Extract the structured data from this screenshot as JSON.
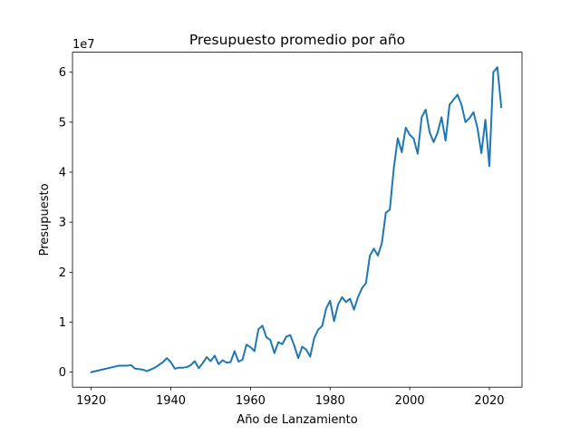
{
  "chart_data": {
    "type": "line",
    "title": "Presupuesto promedio por año",
    "xlabel": "Año de Lanzamiento",
    "ylabel": "Presupuesto",
    "offset_label": "1e7",
    "xlim": [
      1915.3,
      2028.2
    ],
    "ylim": [
      -3000000,
      64000000
    ],
    "xticks": [
      1920,
      1940,
      1960,
      1980,
      2000,
      2020
    ],
    "yticks": [
      0,
      10000000,
      20000000,
      30000000,
      40000000,
      50000000,
      60000000
    ],
    "ytick_labels": [
      "0",
      "1",
      "2",
      "3",
      "4",
      "5",
      "6"
    ],
    "grid": false,
    "color": "#1f77b4",
    "series": [
      {
        "x": [
          1920,
          1927,
          1929,
          1930,
          1931,
          1933,
          1934,
          1936,
          1938,
          1939,
          1940,
          1941,
          1942,
          1943,
          1944,
          1945,
          1946,
          1947,
          1948,
          1949,
          1950,
          1951,
          1952,
          1953,
          1954,
          1955,
          1956,
          1957,
          1958,
          1959,
          1960,
          1961,
          1962,
          1963,
          1964,
          1965,
          1966,
          1967,
          1968,
          1969,
          1970,
          1971,
          1972,
          1973,
          1974,
          1975,
          1976,
          1977,
          1978,
          1979,
          1980,
          1981,
          1982,
          1983,
          1984,
          1985,
          1986,
          1987,
          1988,
          1989,
          1990,
          1991,
          1992,
          1993,
          1994,
          1995,
          1996,
          1997,
          1998,
          1999,
          2000,
          2001,
          2002,
          2003,
          2004,
          2005,
          2006,
          2007,
          2008,
          2009,
          2010,
          2011,
          2012,
          2013,
          2014,
          2015,
          2016,
          2017,
          2018,
          2019,
          2020,
          2021,
          2022,
          2023
        ],
        "y": [
          0,
          1300000,
          1300000,
          1400000,
          700000,
          500000,
          200000,
          900000,
          2000000,
          2800000,
          2000000,
          700000,
          900000,
          900000,
          1000000,
          1400000,
          2200000,
          800000,
          1800000,
          3000000,
          2200000,
          3300000,
          1600000,
          2400000,
          1900000,
          2000000,
          4200000,
          2100000,
          2500000,
          5500000,
          5000000,
          4200000,
          8600000,
          9300000,
          7000000,
          6400000,
          3800000,
          6000000,
          5600000,
          7100000,
          7400000,
          5300000,
          2800000,
          5100000,
          4500000,
          3100000,
          6800000,
          8500000,
          9200000,
          12700000,
          14300000,
          10200000,
          13500000,
          15000000,
          14000000,
          14700000,
          12500000,
          15000000,
          16800000,
          17800000,
          23300000,
          24700000,
          23300000,
          25800000,
          31900000,
          32500000,
          40800000,
          46800000,
          44000000,
          48900000,
          47500000,
          46700000,
          43700000,
          51000000,
          52500000,
          48000000,
          46000000,
          47900000,
          51000000,
          46300000,
          53500000,
          54500000,
          55500000,
          53500000,
          50000000,
          50800000,
          52000000,
          48900000,
          43800000,
          50500000,
          41200000,
          60000000,
          61000000,
          53000000
        ]
      }
    ]
  }
}
